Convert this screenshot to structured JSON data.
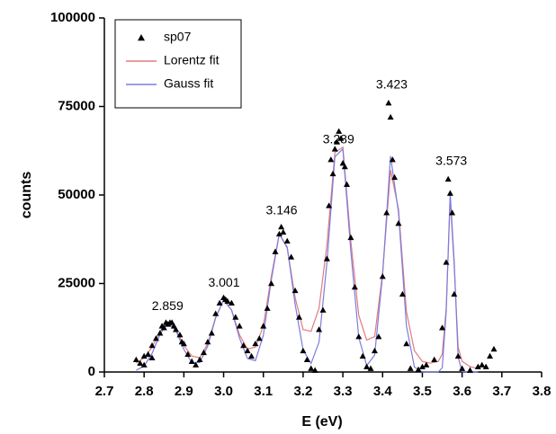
{
  "chart_data": {
    "type": "scatter",
    "xlabel": "E (eV)",
    "ylabel": "counts",
    "xlim": [
      2.7,
      3.8
    ],
    "xticks": [
      2.7,
      2.8,
      2.9,
      {
        "value": 3,
        "label": "3.0"
      },
      3.1,
      3.2,
      3.3,
      3.4,
      3.5,
      3.6,
      3.7,
      3.8
    ],
    "ylim": [
      0,
      100000
    ],
    "yticks": [
      0,
      25000,
      50000,
      75000,
      100000
    ],
    "legend": "upper left",
    "series": [
      {
        "name": "sp07",
        "type": "scatter",
        "color": "#000000",
        "x": [
          2.78,
          2.79,
          2.8,
          2.8,
          2.81,
          2.82,
          2.82,
          2.83,
          2.84,
          2.845,
          2.85,
          2.855,
          2.86,
          2.865,
          2.87,
          2.875,
          2.88,
          2.89,
          2.895,
          2.9,
          2.91,
          2.92,
          2.93,
          2.94,
          2.95,
          2.96,
          2.97,
          2.98,
          2.99,
          3.0,
          3.005,
          3.01,
          3.02,
          3.03,
          3.04,
          3.05,
          3.06,
          3.07,
          3.08,
          3.09,
          3.1,
          3.11,
          3.12,
          3.13,
          3.14,
          3.145,
          3.15,
          3.16,
          3.17,
          3.18,
          3.19,
          3.2,
          3.21,
          3.22,
          3.23,
          3.24,
          3.25,
          3.26,
          3.265,
          3.27,
          3.275,
          3.28,
          3.285,
          3.29,
          3.295,
          3.3,
          3.305,
          3.31,
          3.32,
          3.33,
          3.34,
          3.35,
          3.36,
          3.37,
          3.38,
          3.39,
          3.4,
          3.41,
          3.415,
          3.42,
          3.425,
          3.43,
          3.44,
          3.45,
          3.46,
          3.47,
          3.49,
          3.5,
          3.51,
          3.53,
          3.55,
          3.56,
          3.565,
          3.57,
          3.575,
          3.58,
          3.59,
          3.6,
          3.62,
          3.64,
          3.65,
          3.66,
          3.67,
          3.68
        ],
        "values": [
          3500,
          2500,
          2000,
          4500,
          5000,
          7500,
          4000,
          9500,
          11000,
          13000,
          12500,
          14000,
          13500,
          14000,
          14000,
          13000,
          12000,
          10500,
          8500,
          8000,
          5000,
          3000,
          2000,
          3500,
          5500,
          8500,
          11000,
          16500,
          19500,
          21000,
          20500,
          20000,
          19500,
          15500,
          13000,
          7500,
          6000,
          4500,
          8000,
          9500,
          13000,
          18000,
          25000,
          34000,
          39000,
          41000,
          39500,
          37000,
          32500,
          23000,
          15500,
          6000,
          3500,
          1000,
          500,
          12000,
          17500,
          32000,
          47000,
          60000,
          56000,
          63000,
          65000,
          68000,
          66000,
          59000,
          58000,
          53000,
          38000,
          24000,
          10000,
          4500,
          1500,
          1000,
          6000,
          10000,
          27000,
          45000,
          76000,
          72000,
          60000,
          55000,
          42000,
          22000,
          8000,
          1000,
          700,
          1500,
          2000,
          3500,
          12500,
          31000,
          54500,
          50500,
          45000,
          22000,
          4500,
          1000,
          500,
          1500,
          2000,
          1500,
          4500,
          6500
        ]
      },
      {
        "name": "Lorentz fit",
        "type": "line",
        "color": "#e07c7c",
        "x": [
          2.78,
          2.8,
          2.82,
          2.84,
          2.86,
          2.88,
          2.9,
          2.92,
          2.94,
          2.96,
          2.98,
          3.0,
          3.02,
          3.04,
          3.06,
          3.08,
          3.1,
          3.12,
          3.14,
          3.16,
          3.18,
          3.2,
          3.22,
          3.24,
          3.26,
          3.28,
          3.3,
          3.32,
          3.34,
          3.36,
          3.38,
          3.4,
          3.42,
          3.44,
          3.46,
          3.48,
          3.5,
          3.52,
          3.54,
          3.55,
          3.56,
          3.57,
          3.58,
          3.59,
          3.6,
          3.62,
          3.64
        ],
        "values": [
          2500,
          4000,
          7000,
          11500,
          14000,
          12000,
          7500,
          4500,
          4000,
          8000,
          15500,
          20200,
          17500,
          10500,
          6500,
          7000,
          13000,
          27000,
          39000,
          35000,
          21000,
          12000,
          11500,
          18000,
          36000,
          62000,
          63500,
          37000,
          16000,
          9000,
          10000,
          28000,
          57000,
          46000,
          17000,
          6000,
          3000,
          2500,
          3000,
          5000,
          18000,
          49000,
          30000,
          7000,
          3000,
          1500,
          1000
        ]
      },
      {
        "name": "Gauss fit",
        "type": "line",
        "color": "#7c7ce0",
        "x": [
          2.78,
          2.8,
          2.82,
          2.84,
          2.86,
          2.88,
          2.9,
          2.92,
          2.94,
          2.96,
          2.98,
          3.0,
          3.02,
          3.04,
          3.06,
          3.08,
          3.1,
          3.12,
          3.14,
          3.16,
          3.18,
          3.2,
          3.22,
          3.24,
          3.26,
          3.28,
          3.3,
          3.32,
          3.34,
          3.36,
          3.38,
          3.4,
          3.42,
          3.44,
          3.46,
          3.48,
          3.5,
          3.52,
          3.54,
          3.55,
          3.56,
          3.57,
          3.58,
          3.59,
          3.6,
          3.62,
          3.64
        ],
        "values": [
          500,
          1650,
          5250,
          10650,
          14000,
          11700,
          6400,
          2600,
          2700,
          7300,
          15300,
          20400,
          17500,
          9600,
          3800,
          3200,
          10400,
          26000,
          39000,
          35300,
          19100,
          6200,
          2400,
          8400,
          31000,
          60800,
          63000,
          34200,
          9800,
          1800,
          4800,
          27500,
          61000,
          45000,
          13000,
          1400,
          0,
          0,
          0,
          1200,
          17000,
          50500,
          31500,
          4150,
          100,
          0,
          0
        ]
      }
    ],
    "annotations": [
      {
        "x": 2.859,
        "y": 18500
      },
      {
        "x": 3.001,
        "y": 25000
      },
      {
        "x": 3.146,
        "y": 45500
      },
      {
        "x": 3.289,
        "y": 65500
      },
      {
        "x": 3.423,
        "y": 81000
      },
      {
        "x": 3.573,
        "y": 59500
      }
    ]
  }
}
